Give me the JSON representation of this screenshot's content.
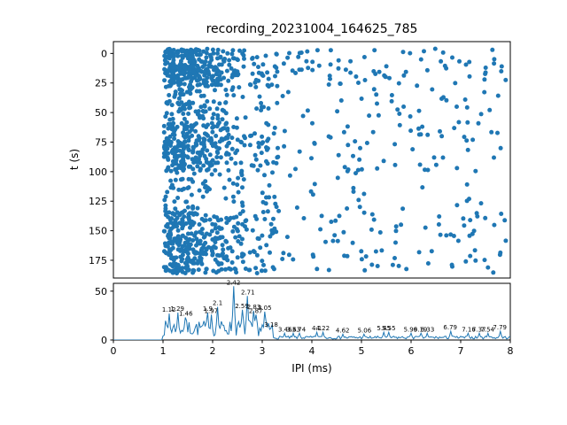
{
  "figure": {
    "title": "recording_20231004_164625_785",
    "background": "#ffffff"
  },
  "chart_data": [
    {
      "type": "scatter",
      "title": "recording_20231004_164625_785",
      "xlabel": "",
      "ylabel": "t (s)",
      "xlim": [
        0,
        8
      ],
      "ylim": [
        -10,
        190
      ],
      "y_inverted": true,
      "x_ticks": [
        0,
        1,
        2,
        3,
        4,
        5,
        6,
        7,
        8
      ],
      "y_ticks": [
        0,
        25,
        50,
        75,
        100,
        125,
        150,
        175
      ],
      "marker_color": "#1f77b4",
      "n_points": 1400,
      "seed": 42,
      "x_cluster": {
        "start": 1.02,
        "sigma": 0.7,
        "cluster_frac": 0.55,
        "mid_frac": 0.17,
        "uniform_range": [
          1.05,
          7.95
        ]
      },
      "t_bands": [
        {
          "range": [
            -4,
            27
          ],
          "w": 0.27
        },
        {
          "range": [
            27,
            56
          ],
          "w": 0.11
        },
        {
          "range": [
            58,
            100
          ],
          "w": 0.23
        },
        {
          "range": [
            100,
            132
          ],
          "w": 0.07
        },
        {
          "range": [
            133,
            167
          ],
          "w": 0.2
        },
        {
          "range": [
            167,
            186
          ],
          "w": 0.12
        }
      ]
    },
    {
      "type": "line",
      "xlabel": "IPI (ms)",
      "ylabel": "",
      "xlim": [
        0,
        8
      ],
      "ylim": [
        0,
        58
      ],
      "x_ticks": [
        0,
        1,
        2,
        3,
        4,
        5,
        6,
        7,
        8
      ],
      "y_ticks": [
        0,
        50
      ],
      "line_color": "#1f77b4",
      "seed": 7,
      "bin_width": 0.025,
      "flat_until": 1.0,
      "dense_region_end": 3.22,
      "annotations": [
        {
          "x": 1.12,
          "y": 27,
          "text": "1.12"
        },
        {
          "x": 1.29,
          "y": 28,
          "text": "1.29"
        },
        {
          "x": 1.46,
          "y": 23,
          "text": "1.46"
        },
        {
          "x": 1.9,
          "y": 28,
          "text": "1.9"
        },
        {
          "x": 1.97,
          "y": 26,
          "text": "1.97"
        },
        {
          "x": 2.1,
          "y": 34,
          "text": "2.1"
        },
        {
          "x": 2.42,
          "y": 55,
          "text": "2.42"
        },
        {
          "x": 2.59,
          "y": 31,
          "text": "2.59"
        },
        {
          "x": 2.71,
          "y": 45,
          "text": "2.71"
        },
        {
          "x": 2.83,
          "y": 30,
          "text": "2.83"
        },
        {
          "x": 2.87,
          "y": 26,
          "text": "2.87"
        },
        {
          "x": 3.05,
          "y": 29,
          "text": "3.05"
        },
        {
          "x": 3.18,
          "y": 12,
          "text": "3.18"
        },
        {
          "x": 3.46,
          "y": 7,
          "text": "3.46"
        },
        {
          "x": 3.63,
          "y": 7,
          "text": "3.63"
        },
        {
          "x": 3.74,
          "y": 7,
          "text": "3.74"
        },
        {
          "x": 4.1,
          "y": 8,
          "text": "4.1"
        },
        {
          "x": 4.22,
          "y": 8,
          "text": "4.22"
        },
        {
          "x": 4.62,
          "y": 6,
          "text": "4.62"
        },
        {
          "x": 5.06,
          "y": 6,
          "text": "5.06"
        },
        {
          "x": 5.45,
          "y": 8,
          "text": "5.45"
        },
        {
          "x": 5.55,
          "y": 8,
          "text": "5.55"
        },
        {
          "x": 5.99,
          "y": 7,
          "text": "5.99"
        },
        {
          "x": 6.19,
          "y": 7,
          "text": "6.19"
        },
        {
          "x": 6.33,
          "y": 7,
          "text": "6.33"
        },
        {
          "x": 6.79,
          "y": 9,
          "text": "6.79"
        },
        {
          "x": 7.16,
          "y": 7,
          "text": "7.16"
        },
        {
          "x": 7.37,
          "y": 7,
          "text": "7.37"
        },
        {
          "x": 7.54,
          "y": 7,
          "text": "7.54"
        },
        {
          "x": 7.79,
          "y": 9,
          "text": "7.79"
        }
      ]
    }
  ]
}
